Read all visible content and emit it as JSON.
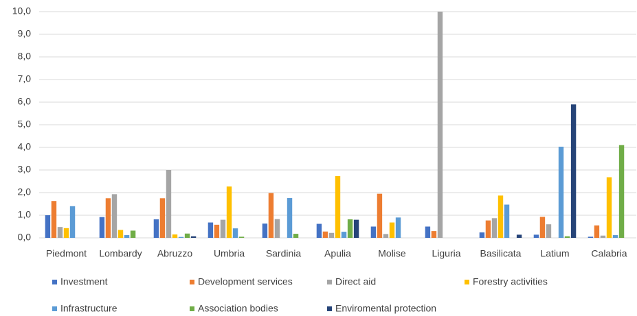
{
  "chart_data": {
    "type": "bar",
    "categories": [
      "Piedmont",
      "Lombardy",
      "Abruzzo",
      "Umbria",
      "Sardinia",
      "Apulia",
      "Molise",
      "Liguria",
      "Basilicata",
      "Latium",
      "Calabria"
    ],
    "series": [
      {
        "name": "Investment",
        "color": "#4472c4",
        "values": [
          1.0,
          0.92,
          0.82,
          0.68,
          0.63,
          0.62,
          0.5,
          0.5,
          0.24,
          0.14,
          0.05
        ]
      },
      {
        "name": "Development services",
        "color": "#ed7d31",
        "values": [
          1.63,
          1.75,
          1.75,
          0.58,
          1.98,
          0.28,
          1.95,
          0.3,
          0.77,
          0.93,
          0.55
        ]
      },
      {
        "name": "Direct aid",
        "color": "#a5a5a5",
        "values": [
          0.48,
          1.93,
          3.0,
          0.8,
          0.83,
          0.22,
          0.17,
          10.0,
          0.87,
          0.6,
          0.1
        ]
      },
      {
        "name": "Forestry activities",
        "color": "#ffc000",
        "values": [
          0.43,
          0.35,
          0.15,
          2.27,
          0,
          2.73,
          0.68,
          0,
          1.87,
          0,
          2.68
        ]
      },
      {
        "name": "Infrastructure",
        "color": "#5b9bd5",
        "values": [
          1.4,
          0.12,
          0.04,
          0.42,
          1.76,
          0.27,
          0.9,
          0,
          1.47,
          4.03,
          0.12
        ]
      },
      {
        "name": "Association bodies",
        "color": "#70ad47",
        "values": [
          0,
          0.32,
          0.19,
          0.05,
          0.18,
          0.82,
          0,
          0,
          0,
          0.07,
          4.1
        ]
      },
      {
        "name": "Enviromental protection",
        "color": "#264478",
        "values": [
          0,
          0,
          0.07,
          0,
          0,
          0.8,
          0,
          0,
          0.14,
          5.9,
          0
        ]
      }
    ],
    "ylim": [
      0,
      10
    ],
    "yticks": [
      {
        "value": 0,
        "label": "0,0"
      },
      {
        "value": 1,
        "label": "1,0"
      },
      {
        "value": 2,
        "label": "2,0"
      },
      {
        "value": 3,
        "label": "3,0"
      },
      {
        "value": 4,
        "label": "4,0"
      },
      {
        "value": 5,
        "label": "5,0"
      },
      {
        "value": 6,
        "label": "6,0"
      },
      {
        "value": 7,
        "label": "7,0"
      },
      {
        "value": 8,
        "label": "8,0"
      },
      {
        "value": 9,
        "label": "9,0"
      },
      {
        "value": 10,
        "label": "10,0"
      }
    ],
    "grid": true,
    "legend": "bottom"
  }
}
